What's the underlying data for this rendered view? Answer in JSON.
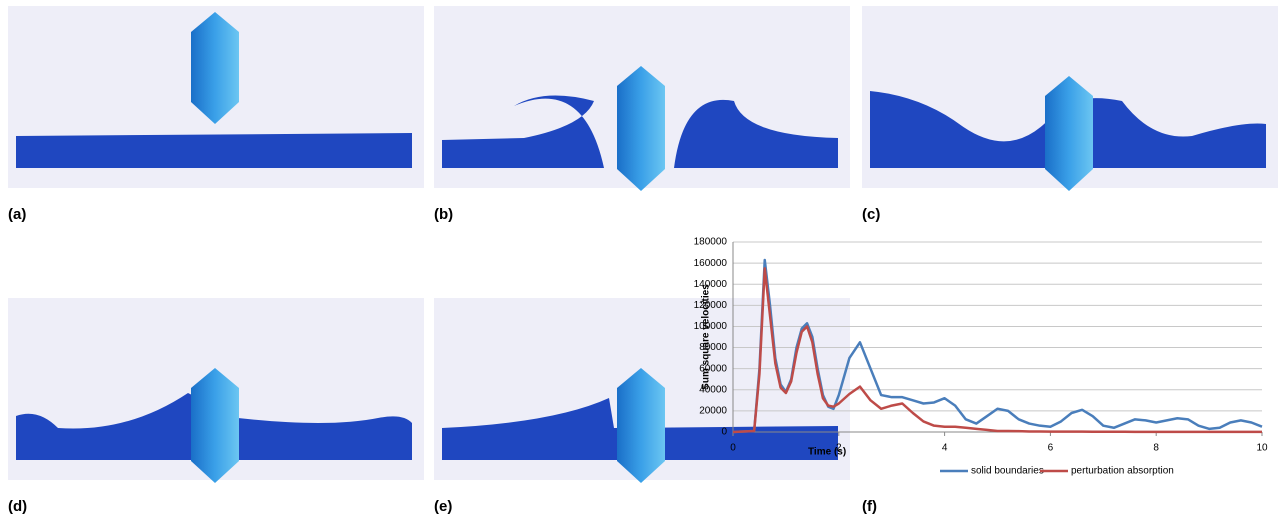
{
  "panels": [
    {
      "label": "(a)"
    },
    {
      "label": "(b)"
    },
    {
      "label": "(c)"
    },
    {
      "label": "(d)"
    },
    {
      "label": "(e)"
    },
    {
      "label": "(f)"
    }
  ],
  "chart_data": {
    "type": "line",
    "x_label": "Time (s)",
    "y_label": "Sum square velocities",
    "x": [
      0,
      0.4,
      0.5,
      0.6,
      0.7,
      0.8,
      0.9,
      1.0,
      1.1,
      1.2,
      1.3,
      1.4,
      1.5,
      1.6,
      1.7,
      1.8,
      1.9,
      2.0,
      2.2,
      2.4,
      2.6,
      2.8,
      3.0,
      3.2,
      3.4,
      3.6,
      3.8,
      4.0,
      4.2,
      4.4,
      4.6,
      4.8,
      5.0,
      5.2,
      5.4,
      5.6,
      5.8,
      6.0,
      6.2,
      6.4,
      6.6,
      6.8,
      7.0,
      7.2,
      7.4,
      7.6,
      7.8,
      8.0,
      8.2,
      8.4,
      8.6,
      8.8,
      9.0,
      9.2,
      9.4,
      9.6,
      9.8,
      10.0
    ],
    "series": [
      {
        "name": "solid boundaries",
        "color": "#4a7ebb",
        "values": [
          0,
          1000,
          60000,
          163000,
          120000,
          70000,
          45000,
          38000,
          50000,
          80000,
          98000,
          103000,
          90000,
          60000,
          35000,
          24000,
          22000,
          35000,
          70000,
          85000,
          60000,
          35000,
          33000,
          33000,
          30000,
          27000,
          28000,
          32000,
          25000,
          12000,
          8000,
          15000,
          22000,
          20000,
          12000,
          8000,
          6000,
          5000,
          10000,
          18000,
          21000,
          15000,
          6000,
          4000,
          8000,
          12000,
          11000,
          9000,
          11000,
          13000,
          12000,
          6000,
          3000,
          4000,
          9000,
          11000,
          9000,
          5000
        ]
      },
      {
        "name": "perturbation absorption",
        "color": "#be4b48",
        "values": [
          0,
          1000,
          55000,
          155000,
          110000,
          65000,
          42000,
          37000,
          48000,
          75000,
          95000,
          100000,
          85000,
          55000,
          32000,
          25000,
          24000,
          27000,
          36000,
          43000,
          30000,
          22000,
          25000,
          27000,
          18000,
          10000,
          6000,
          5000,
          5000,
          4000,
          3000,
          2000,
          1000,
          1000,
          800,
          500,
          500,
          400,
          300,
          300,
          300,
          200,
          200,
          200,
          200,
          100,
          100,
          100,
          100,
          100,
          100,
          100,
          100,
          100,
          100,
          100,
          100,
          100
        ]
      }
    ],
    "xlim": [
      0,
      10
    ],
    "xticks": [
      0,
      2,
      4,
      6,
      8,
      10
    ],
    "ylim": [
      0,
      180000
    ],
    "yticks": [
      0,
      20000,
      40000,
      60000,
      80000,
      100000,
      120000,
      140000,
      160000,
      180000
    ],
    "grid": true
  }
}
